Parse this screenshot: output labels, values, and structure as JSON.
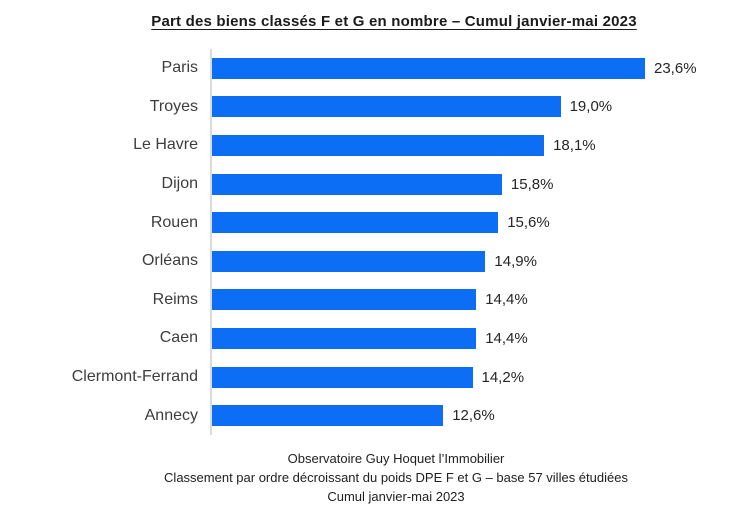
{
  "chart_data": {
    "type": "bar",
    "orientation": "horizontal",
    "title": "Part des biens classés F et G en nombre – Cumul janvier-mai 2023",
    "categories": [
      "Paris",
      "Troyes",
      "Le Havre",
      "Dijon",
      "Rouen",
      "Orléans",
      "Reims",
      "Caen",
      "Clermont-Ferrand",
      "Annecy"
    ],
    "values": [
      23.6,
      19.0,
      18.1,
      15.8,
      15.6,
      14.9,
      14.4,
      14.4,
      14.2,
      12.6
    ],
    "value_labels": [
      "23,6%",
      "19,0%",
      "18,1%",
      "15,8%",
      "15,6%",
      "14,9%",
      "14,4%",
      "14,4%",
      "14,2%",
      "12,6%"
    ],
    "xlabel": "",
    "ylabel": "",
    "xlim": [
      0,
      23.6
    ],
    "grid": false,
    "legend": false,
    "bar_color": "#0b6ef5",
    "axis_color": "#dadada"
  },
  "footer": {
    "line1": "Observatoire Guy Hoquet l’Immobilier",
    "line2": "Classement par ordre décroissant du poids DPE F et G – base 57 villes étudiées",
    "line3": "Cumul janvier-mai 2023"
  }
}
